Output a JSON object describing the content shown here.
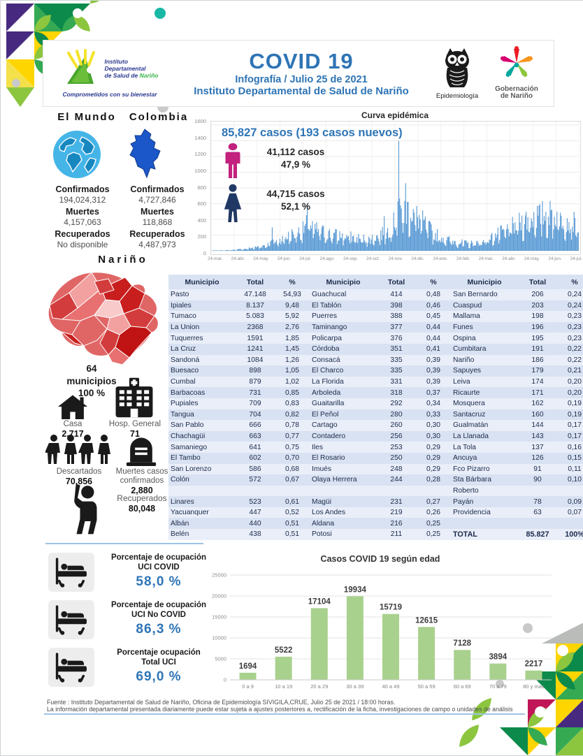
{
  "header": {
    "title": "COVID 19",
    "subtitle1": "Infografía / Julio 25 de 2021",
    "subtitle2": "Instituto Departamental de Salud de Nariño",
    "idsn_logo": {
      "line1": "Instituto",
      "line2": "Departamental",
      "line3": "de Salud de ",
      "line3b": "Nariño",
      "tagline": "Comprometidos con su bienestar"
    },
    "epidemiologia_label": "Epidemiología",
    "gobernacion_line1": "Gobernación",
    "gobernacion_line2": "de Nariño"
  },
  "world": {
    "heading": "El Mundo",
    "confirmados_label": "Confirmados",
    "confirmados": "194,024,312",
    "muertes_label": "Muertes",
    "muertes": "4,157,063",
    "recuperados_label": "Recuperados",
    "recuperados": "No disponible"
  },
  "colombia": {
    "heading": "Colombia",
    "confirmados_label": "Confirmados",
    "confirmados": "4,727,846",
    "muertes_label": "Muertes",
    "muertes": "118,868",
    "recuperados_label": "Recuperados",
    "recuperados": "4,487,973"
  },
  "narino": {
    "heading": "Nariño",
    "municipios_count": "64",
    "municipios_label": "municipios",
    "municipios_pct": "100 %",
    "casa_label": "Casa",
    "casa_value": "2,717",
    "hosp_label": "Hosp. General",
    "hosp_value": "71",
    "descartados_label": "Descartados",
    "descartados_value": "70,856",
    "muertes_label1": "Muertes casos",
    "muertes_label2": "confirmados",
    "muertes_value": "2,880",
    "recuperados_label": "Recuperados",
    "recuperados_value": "80,048"
  },
  "curva": {
    "title": "Curva epidémica",
    "total_line": "85,827  casos (193 casos nuevos)",
    "men_casos": "41,112  casos",
    "men_pct": "47,9 %",
    "women_casos": "44,715  casos",
    "women_pct": "52,1 %"
  },
  "table": {
    "headers": [
      "Municipio",
      "Total",
      "%"
    ],
    "rows": [
      [
        "Pasto",
        "47.148",
        "54,93",
        "Guachucal",
        "414",
        "0,48",
        "San Bernardo",
        "206",
        "0,24"
      ],
      [
        "Ipiales",
        "8.137",
        "9,48",
        "El Tablón",
        "398",
        "0,46",
        "Cuaspud",
        "203",
        "0,24"
      ],
      [
        "Tumaco",
        "5.083",
        "5,92",
        "Puerres",
        "388",
        "0,45",
        "Mallama",
        "198",
        "0,23"
      ],
      [
        "La Union",
        "2368",
        "2,76",
        "Taminango",
        "377",
        "0,44",
        "Funes",
        "196",
        "0,23"
      ],
      [
        "Tuquerres",
        "1591",
        "1,85",
        "Policarpa",
        "376",
        "0,44",
        "Ospina",
        "195",
        "0,23"
      ],
      [
        "La Cruz",
        "1241",
        "1,45",
        "Córdoba",
        "351",
        "0,41",
        "Cumbitara",
        "191",
        "0,22"
      ],
      [
        "Sandoná",
        "1084",
        "1,26",
        "Consacá",
        "335",
        "0,39",
        "Nariño",
        "186",
        "0,22"
      ],
      [
        "Buesaco",
        "898",
        "1,05",
        "El Charco",
        "335",
        "0,39",
        "Sapuyes",
        "179",
        "0,21"
      ],
      [
        "Cumbal",
        "879",
        "1,02",
        "La Florida",
        "331",
        "0,39",
        "Leiva",
        "174",
        "0,20"
      ],
      [
        "Barbacoas",
        "731",
        "0,85",
        "Arboleda",
        "318",
        "0,37",
        "Ricaurte",
        "171",
        "0,20"
      ],
      [
        "Pupiales",
        "709",
        "0,83",
        "Guaitarilla",
        "292",
        "0,34",
        "Mosquera",
        "162",
        "0,19"
      ],
      [
        "Tangua",
        "704",
        "0,82",
        "El Peñol",
        "280",
        "0,33",
        "Santacruz",
        "160",
        "0,19"
      ],
      [
        "San Pablo",
        "666",
        "0,78",
        "Cartago",
        "260",
        "0,30",
        "Gualmatán",
        "144",
        "0,17"
      ],
      [
        "Chachagüi",
        "663",
        "0,77",
        "Contadero",
        "256",
        "0,30",
        "La Llanada",
        "143",
        "0,17"
      ],
      [
        "Samaniego",
        "641",
        "0,75",
        "Iles",
        "253",
        "0,29",
        "La Tola",
        "137",
        "0,16"
      ],
      [
        "El Tambo",
        "602",
        "0,70",
        "El Rosario",
        "250",
        "0,29",
        "Ancuya",
        "126",
        "0,15"
      ],
      [
        "San Lorenzo",
        "586",
        "0,68",
        "Imués",
        "248",
        "0,29",
        "Fco Pizarro",
        "91",
        "0,11"
      ],
      [
        "Colón",
        "572",
        "0,67",
        "Olaya Herrera",
        "244",
        "0,28",
        "Sta Bárbara",
        "90",
        "0,10"
      ],
      [
        "",
        "",
        "",
        "",
        "",
        "",
        "Roberto",
        "",
        ""
      ],
      [
        "Linares",
        "523",
        "0,61",
        "Magüi",
        "231",
        "0,27",
        "Payán",
        "78",
        "0,09"
      ],
      [
        "Yacuanquer",
        "447",
        "0,52",
        "Los Andes",
        "219",
        "0,26",
        "Providencia",
        "63",
        "0,07"
      ],
      [
        "Albán",
        "440",
        "0,51",
        "Aldana",
        "216",
        "0,25",
        "",
        "",
        ""
      ],
      [
        "Belén",
        "438",
        "0,51",
        "Potosi",
        "211",
        "0,25",
        "TOTAL",
        "85.827",
        "100%"
      ]
    ],
    "total_row_index": 22
  },
  "uci": {
    "items": [
      {
        "line1": "Porcentaje de ocupación",
        "line2": "UCI COVID",
        "pct": "58,0  %"
      },
      {
        "line1": "Porcentaje de ocupación",
        "line2": "UCI No COVID",
        "pct": "86,3  %"
      },
      {
        "line1": "Porcentaje ocupación",
        "line2": "Total UCI",
        "pct": "69,0  %"
      }
    ]
  },
  "footer": {
    "line1": "Fuente : Instituto Departamental de Salud de Nariño, Oficina de Epidemiología SIVIGILA,CRUE,  Julio 25  de 2021 / 18:00  horas.",
    "line2": "La información departamental presentada diariamente puede estar sujeta a ajustes posteriores a, rectificación de la ficha, investigaciones de campo o unidades de análisis"
  },
  "colors": {
    "accent_blue": "#2e75b6",
    "curve_bar": "#5b9bd5",
    "male_icon": "#c2217e",
    "female_icon": "#1f3864",
    "age_bar": "#a9d18e",
    "table_bg_light": "#e9eef9",
    "table_bg_dark": "#d9e2f2",
    "map_red": "#c00000"
  },
  "chart_data": [
    {
      "type": "bar",
      "title": "Curva epidémica",
      "x_tick_labels": [
        "24-mar.",
        "24-abr.",
        "24-may.",
        "24-jun.",
        "24-jul.",
        "24-ago.",
        "24-sep.",
        "24-oct.",
        "24-nov.",
        "24-dic.",
        "24-ene.",
        "24-feb.",
        "24-mar.",
        "24-abr.",
        "24-may.",
        "24-jun.",
        "24-jul."
      ],
      "ylim": [
        0,
        1600
      ],
      "yticks": [
        0,
        200,
        400,
        600,
        800,
        1000,
        1200,
        1400,
        1600
      ],
      "bar_color": "#5b9bd5",
      "n_bars": 430,
      "envelope": [
        [
          0,
          6
        ],
        [
          0.05,
          12
        ],
        [
          0.09,
          35
        ],
        [
          0.125,
          70
        ],
        [
          0.16,
          130
        ],
        [
          0.19,
          210
        ],
        [
          0.22,
          300
        ],
        [
          0.25,
          380
        ],
        [
          0.262,
          520
        ],
        [
          0.28,
          400
        ],
        [
          0.31,
          330
        ],
        [
          0.34,
          290
        ],
        [
          0.37,
          260
        ],
        [
          0.4,
          230
        ],
        [
          0.43,
          210
        ],
        [
          0.46,
          280
        ],
        [
          0.48,
          360
        ],
        [
          0.5,
          520
        ],
        [
          0.515,
          700
        ],
        [
          0.53,
          760
        ],
        [
          0.55,
          680
        ],
        [
          0.57,
          560
        ],
        [
          0.59,
          420
        ],
        [
          0.61,
          300
        ],
        [
          0.64,
          210
        ],
        [
          0.67,
          160
        ],
        [
          0.7,
          130
        ],
        [
          0.73,
          150
        ],
        [
          0.76,
          230
        ],
        [
          0.79,
          330
        ],
        [
          0.82,
          430
        ],
        [
          0.85,
          540
        ],
        [
          0.88,
          620
        ],
        [
          0.91,
          660
        ],
        [
          0.94,
          640
        ],
        [
          0.97,
          560
        ],
        [
          1,
          460
        ]
      ],
      "spikes": [
        [
          0.51,
          1400
        ],
        [
          0.528,
          860
        ],
        [
          0.262,
          600
        ],
        [
          0.165,
          300
        ],
        [
          0.47,
          440
        ]
      ]
    },
    {
      "type": "bar",
      "title": "Casos COVID 19  según edad",
      "categories": [
        "0 a 9",
        "10 a 19",
        "20 a 29",
        "30 a 39",
        "40 a 49",
        "50 a 59",
        "60 a 69",
        "70 a 79",
        "80 y mas"
      ],
      "values": [
        1694,
        5522,
        17104,
        19934,
        15719,
        12615,
        7128,
        3894,
        2217
      ],
      "ylim": [
        0,
        25000
      ],
      "yticks": [
        0,
        5000,
        10000,
        15000,
        20000,
        25000
      ],
      "bar_color": "#a9d18e"
    }
  ]
}
